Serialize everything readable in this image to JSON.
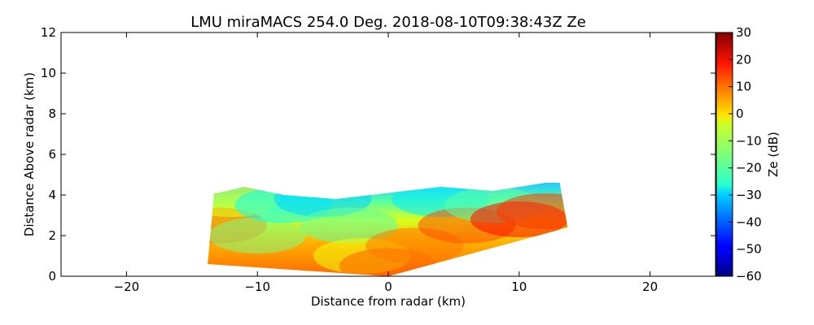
{
  "chart_data": {
    "type": "heatmap",
    "title": "LMU miraMACS 254.0 Deg. 2018-08-10T09:38:43Z  Ze",
    "xlabel": "Distance from radar (km)",
    "ylabel": "Distance Above radar  (km)",
    "xlim": [
      -25,
      25
    ],
    "ylim": [
      0,
      12
    ],
    "xticks": [
      "−20",
      "−10",
      "0",
      "10",
      "20"
    ],
    "xtick_values": [
      -20,
      -10,
      0,
      10,
      20
    ],
    "yticks": [
      "0",
      "2",
      "4",
      "6",
      "8",
      "10",
      "12"
    ],
    "ytick_values": [
      0,
      2,
      4,
      6,
      8,
      10,
      12
    ],
    "colorbar": {
      "label": "Ze (dB)",
      "range": [
        -60,
        30
      ],
      "colormap": "jet",
      "ticks": [
        "30",
        "20",
        "10",
        "0",
        "−10",
        "−20",
        "−30",
        "−40",
        "−50",
        "−60"
      ],
      "tick_values": [
        30,
        20,
        10,
        0,
        -10,
        -20,
        -30,
        -40,
        -50,
        -60
      ]
    },
    "scan_sector": {
      "left_bottom": [
        -13.8,
        0.6
      ],
      "left_top": [
        -13.3,
        4.1
      ],
      "right_top": [
        13.1,
        4.6
      ],
      "right_bottom": [
        13.7,
        2.4
      ],
      "apex": [
        0,
        0
      ],
      "cloud_top_km": [
        4.1,
        4.4,
        4.0,
        3.8,
        4.1,
        4.4,
        4.2,
        4.6
      ],
      "cloud_top_x_km": [
        -13,
        -11,
        -8,
        -4,
        0,
        4,
        8,
        12
      ]
    },
    "reflectivity_samples": [
      {
        "x": -13,
        "y": 2.5,
        "ze": 10
      },
      {
        "x": -12,
        "y": 3.8,
        "ze": -5
      },
      {
        "x": -10,
        "y": 2.0,
        "ze": -15
      },
      {
        "x": -8,
        "y": 3.5,
        "ze": -25
      },
      {
        "x": -5,
        "y": 3.8,
        "ze": -30
      },
      {
        "x": -3,
        "y": 2.5,
        "ze": -18
      },
      {
        "x": -2,
        "y": 1.0,
        "ze": -5
      },
      {
        "x": 0,
        "y": 0.5,
        "ze": 10
      },
      {
        "x": 2,
        "y": 1.5,
        "ze": 8
      },
      {
        "x": 4,
        "y": 3.8,
        "ze": -28
      },
      {
        "x": 6,
        "y": 2.5,
        "ze": 12
      },
      {
        "x": 8,
        "y": 3.5,
        "ze": -18
      },
      {
        "x": 10,
        "y": 2.8,
        "ze": 18
      },
      {
        "x": 12,
        "y": 3.2,
        "ze": 14
      }
    ]
  }
}
